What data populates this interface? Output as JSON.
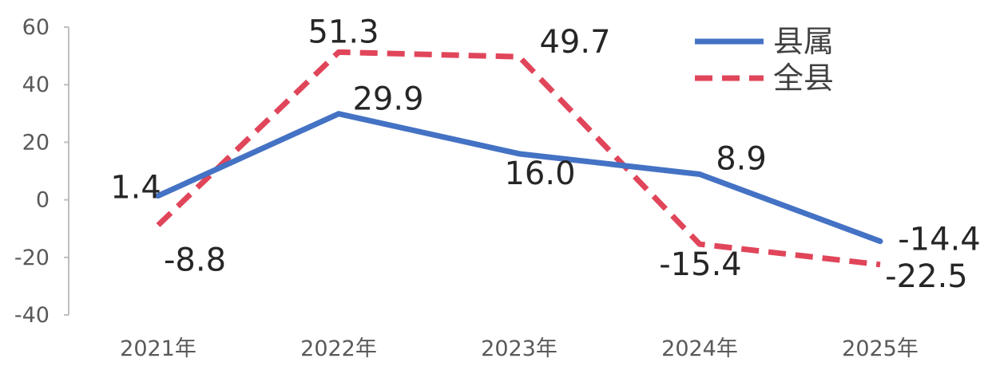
{
  "chart_data": {
    "type": "line",
    "categories": [
      "2021年",
      "2022年",
      "2023年",
      "2024年",
      "2025年"
    ],
    "ylim": [
      -40,
      60
    ],
    "yticks": [
      60,
      40,
      20,
      0,
      -20,
      -40
    ],
    "grid": false,
    "legend_position": "top-right",
    "series": [
      {
        "name": "县属",
        "values": [
          1.4,
          29.9,
          16.0,
          8.9,
          -14.4
        ],
        "labels": [
          "1.4",
          "29.9",
          "16.0",
          "8.9",
          "-14.4"
        ],
        "color": "#4472C4",
        "style": "solid"
      },
      {
        "name": "全县",
        "values": [
          -8.8,
          51.3,
          49.7,
          -15.4,
          -22.5
        ],
        "labels": [
          "-8.8",
          "51.3",
          "49.7",
          "-15.4",
          "-22.5"
        ],
        "color": "#E0455A",
        "style": "dashed"
      }
    ]
  }
}
